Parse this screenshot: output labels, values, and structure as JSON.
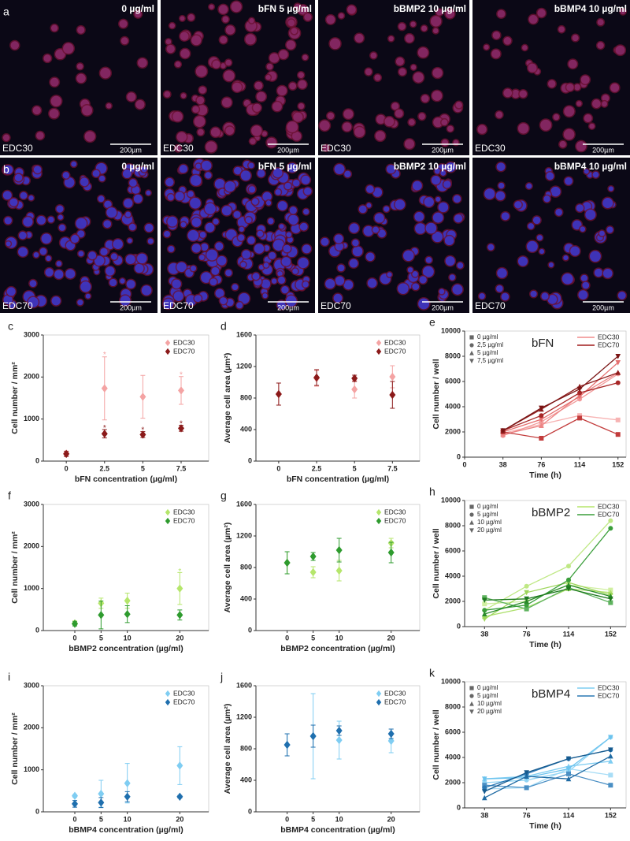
{
  "images": {
    "rows": [
      {
        "label": "a",
        "cells": [
          {
            "title": "0 µg/ml",
            "tag": "EDC30",
            "scale": "200µm"
          },
          {
            "title": "bFN 5 µg/ml",
            "tag": "EDC30",
            "scale": "200µm"
          },
          {
            "title": "bBMP2 10 µg/ml",
            "tag": "EDC30",
            "scale": "200µm"
          },
          {
            "title": "bBMP4 10 µg/ml",
            "tag": "EDC30",
            "scale": "200µm"
          }
        ]
      },
      {
        "label": "b",
        "cells": [
          {
            "title": "0 µg/ml",
            "tag": "EDC70",
            "scale": "200µm"
          },
          {
            "title": "bFN 5 µg/ml",
            "tag": "EDC70",
            "scale": "200µm"
          },
          {
            "title": "bBMP2 10 µg/ml",
            "tag": "EDC70",
            "scale": "200µm"
          },
          {
            "title": "bBMP4 10 µg/ml",
            "tag": "EDC70",
            "scale": "200µm"
          }
        ]
      }
    ]
  },
  "chart_data": [
    {
      "type": "scatter",
      "panel": "c",
      "xlabel": "bFN concentration (µg/ml)",
      "ylabel": "Cell number / mm²",
      "x": [
        0,
        2.5,
        5,
        7.5
      ],
      "xlim": [
        -1.5,
        9.3
      ],
      "xticks": [
        0,
        2.5,
        5,
        7.5
      ],
      "ylim": [
        0,
        3000
      ],
      "yticks": [
        0,
        1000,
        2000,
        3000
      ],
      "series": [
        {
          "name": "EDC30",
          "color": "#f4a3a3",
          "values": [
            180,
            1730,
            1530,
            1680
          ],
          "errors": [
            60,
            750,
            510,
            330
          ]
        },
        {
          "name": "EDC70",
          "color": "#8b1a1a",
          "values": [
            170,
            650,
            630,
            780
          ],
          "errors": [
            60,
            100,
            70,
            70
          ]
        }
      ],
      "annotations": [
        {
          "text": "*",
          "x": 2.5,
          "y": 2560,
          "series": 0
        },
        {
          "text": "*",
          "x": 7.5,
          "y": 2080,
          "series": 0
        },
        {
          "text": "*",
          "x": 2.5,
          "y": 820,
          "series": 1
        },
        {
          "text": "*",
          "x": 5,
          "y": 770,
          "series": 1
        },
        {
          "text": "*",
          "x": 7.5,
          "y": 920,
          "series": 1
        }
      ]
    },
    {
      "type": "scatter",
      "panel": "d",
      "xlabel": "bFN concentration (µg/ml)",
      "ylabel": "Average cell area (µm²)",
      "x": [
        0,
        2.5,
        5,
        7.5
      ],
      "xlim": [
        -1.5,
        9.3
      ],
      "xticks": [
        0,
        2.5,
        5,
        7.5
      ],
      "ylim": [
        0,
        1600
      ],
      "yticks": [
        0,
        400,
        800,
        1200,
        1600
      ],
      "series": [
        {
          "name": "EDC30",
          "color": "#f4a3a3",
          "values": [
            850,
            1050,
            910,
            1070
          ],
          "errors": [
            140,
            100,
            110,
            140
          ]
        },
        {
          "name": "EDC70",
          "color": "#8b1a1a",
          "values": [
            850,
            1060,
            1050,
            840
          ],
          "errors": [
            140,
            100,
            40,
            170
          ]
        }
      ]
    },
    {
      "type": "line",
      "panel": "e",
      "title": "bFN",
      "xlabel": "Time (h)",
      "ylabel": "Cell number / well",
      "x": [
        38,
        76,
        114,
        152
      ],
      "xlim": [
        0,
        160
      ],
      "xticks": [
        0,
        38,
        76,
        114,
        152
      ],
      "ylim": [
        0,
        10000
      ],
      "yticks": [
        0,
        2000,
        4000,
        6000,
        8000,
        10000
      ],
      "marker_legend": [
        "0 µg/ml",
        "2,5 µg/ml",
        "5 µg/ml",
        "7,5 µg/ml"
      ],
      "color_legend": [
        {
          "name": "EDC30",
          "color": "#f08c8c"
        },
        {
          "name": "EDC70",
          "color": "#a01c1c"
        }
      ],
      "series": [
        {
          "group": 0,
          "marker": 0,
          "color": "#f7b3b3",
          "values": [
            1900,
            2600,
            3300,
            2950
          ]
        },
        {
          "group": 0,
          "marker": 1,
          "color": "#f29a9a",
          "values": [
            1700,
            2800,
            4600,
            6600
          ]
        },
        {
          "group": 0,
          "marker": 2,
          "color": "#ec8585",
          "values": [
            1800,
            2500,
            4900,
            6700
          ]
        },
        {
          "group": 0,
          "marker": 3,
          "color": "#e67070",
          "values": [
            2000,
            3000,
            4800,
            7500
          ]
        },
        {
          "group": 1,
          "marker": 0,
          "color": "#c23b3b",
          "values": [
            2000,
            1500,
            3100,
            1800
          ]
        },
        {
          "group": 1,
          "marker": 1,
          "color": "#a82828",
          "values": [
            2100,
            3300,
            5100,
            5900
          ]
        },
        {
          "group": 1,
          "marker": 2,
          "color": "#8e1c1c",
          "values": [
            2100,
            3800,
            5600,
            6700
          ]
        },
        {
          "group": 1,
          "marker": 3,
          "color": "#7a1414",
          "values": [
            2100,
            3900,
            5400,
            8000
          ]
        }
      ]
    },
    {
      "type": "scatter",
      "panel": "f",
      "xlabel": "bBMP2 concentration (µg/ml)",
      "ylabel": "Cell number / mm²",
      "x": [
        0,
        5,
        10,
        20
      ],
      "xlim": [
        -6,
        25.5
      ],
      "xticks": [
        0,
        5,
        10,
        20
      ],
      "ylim": [
        0,
        3000
      ],
      "yticks": [
        0,
        1000,
        2000,
        3000
      ],
      "series": [
        {
          "name": "EDC30",
          "color": "#b5e66b",
          "values": [
            170,
            650,
            710,
            1000
          ],
          "errors": [
            60,
            120,
            180,
            380
          ]
        },
        {
          "name": "EDC70",
          "color": "#2e9b2e",
          "values": [
            160,
            370,
            390,
            370
          ],
          "errors": [
            50,
            330,
            200,
            120
          ]
        }
      ],
      "annotations": [
        {
          "text": "*",
          "x": 20,
          "y": 1440,
          "series": 0
        }
      ]
    },
    {
      "type": "scatter",
      "panel": "g",
      "xlabel": "bBMP2 concentration (µg/ml)",
      "ylabel": "Average cell area (µm²)",
      "x": [
        0,
        5,
        10,
        20
      ],
      "xlim": [
        -6,
        25.5
      ],
      "xticks": [
        0,
        5,
        10,
        20
      ],
      "ylim": [
        0,
        1600
      ],
      "yticks": [
        0,
        400,
        800,
        1200,
        1600
      ],
      "series": [
        {
          "name": "EDC30",
          "color": "#b5e66b",
          "values": [
            860,
            740,
            760,
            1110
          ],
          "errors": [
            140,
            70,
            130,
            60
          ]
        },
        {
          "name": "EDC70",
          "color": "#2e9b2e",
          "values": [
            860,
            940,
            1020,
            990
          ],
          "errors": [
            140,
            50,
            150,
            130
          ]
        }
      ]
    },
    {
      "type": "line",
      "panel": "h",
      "title": "bBMP2",
      "xlabel": "Time (h)",
      "ylabel": "Cell number / well",
      "x": [
        38,
        76,
        114,
        152
      ],
      "xlim": [
        20,
        166
      ],
      "xticks": [
        38,
        76,
        114,
        152
      ],
      "ylim": [
        0,
        10000
      ],
      "yticks": [
        0,
        2000,
        4000,
        6000,
        8000,
        10000
      ],
      "marker_legend": [
        "0 µg/ml",
        "5 µg/ml",
        "10 µg/ml",
        "20 µg/ml"
      ],
      "color_legend": [
        {
          "name": "EDC30",
          "color": "#b5e66b"
        },
        {
          "name": "EDC70",
          "color": "#3a9e3a"
        }
      ],
      "series": [
        {
          "group": 0,
          "marker": 0,
          "color": "#d0efa0",
          "values": [
            1800,
            2000,
            3300,
            2900
          ]
        },
        {
          "group": 0,
          "marker": 1,
          "color": "#bfe884",
          "values": [
            1300,
            3200,
            4800,
            8400
          ]
        },
        {
          "group": 0,
          "marker": 2,
          "color": "#aee06e",
          "values": [
            800,
            1500,
            3000,
            2700
          ]
        },
        {
          "group": 0,
          "marker": 3,
          "color": "#9dd65a",
          "values": [
            600,
            2700,
            3500,
            2500
          ]
        },
        {
          "group": 1,
          "marker": 0,
          "color": "#5fb35f",
          "values": [
            2300,
            1400,
            3100,
            1900
          ]
        },
        {
          "group": 1,
          "marker": 1,
          "color": "#3a9e3a",
          "values": [
            1300,
            1700,
            3700,
            7800
          ]
        },
        {
          "group": 1,
          "marker": 2,
          "color": "#2a8a2a",
          "values": [
            1000,
            2000,
            3300,
            2400
          ]
        },
        {
          "group": 1,
          "marker": 3,
          "color": "#1f7a1f",
          "values": [
            2100,
            2200,
            3000,
            2200
          ]
        }
      ]
    },
    {
      "type": "scatter",
      "panel": "i",
      "xlabel": "bBMP4 concentration (µg/ml)",
      "ylabel": "Cell number / mm²",
      "x": [
        0,
        5,
        10,
        20
      ],
      "xlim": [
        -6,
        25.5
      ],
      "xticks": [
        0,
        5,
        10,
        20
      ],
      "ylim": [
        0,
        3000
      ],
      "yticks": [
        0,
        1000,
        2000,
        3000
      ],
      "series": [
        {
          "name": "EDC30",
          "color": "#7fcdf2",
          "values": [
            380,
            430,
            680,
            1100
          ],
          "errors": [
            30,
            320,
            470,
            450
          ]
        },
        {
          "name": "EDC70",
          "color": "#1f6fae",
          "values": [
            190,
            220,
            360,
            360
          ],
          "errors": [
            80,
            120,
            120,
            30
          ]
        }
      ]
    },
    {
      "type": "scatter",
      "panel": "j",
      "xlabel": "bBMP4 concentration (µg/ml)",
      "ylabel": "Average cell area (µm²)",
      "x": [
        0,
        5,
        10,
        20
      ],
      "xlim": [
        -6,
        25.5
      ],
      "xticks": [
        0,
        5,
        10,
        20
      ],
      "ylim": [
        0,
        1600
      ],
      "yticks": [
        0,
        400,
        800,
        1200,
        1600
      ],
      "series": [
        {
          "name": "EDC30",
          "color": "#7fcdf2",
          "values": [
            850,
            960,
            910,
            900
          ],
          "errors": [
            140,
            540,
            240,
            150
          ]
        },
        {
          "name": "EDC70",
          "color": "#1f6fae",
          "values": [
            850,
            960,
            1030,
            990
          ],
          "errors": [
            140,
            140,
            60,
            60
          ]
        }
      ]
    },
    {
      "type": "line",
      "panel": "k",
      "title": "bBMP4",
      "xlabel": "Time (h)",
      "ylabel": "Cell number / well",
      "x": [
        38,
        76,
        114,
        152
      ],
      "xlim": [
        20,
        166
      ],
      "xticks": [
        38,
        76,
        114,
        152
      ],
      "ylim": [
        0,
        10000
      ],
      "yticks": [
        0,
        2000,
        4000,
        6000,
        8000,
        10000
      ],
      "marker_legend": [
        "0 µg/ml",
        "5 µg/ml",
        "10 µg/ml",
        "20 µg/ml"
      ],
      "color_legend": [
        {
          "name": "EDC30",
          "color": "#7fcdf2"
        },
        {
          "name": "EDC70",
          "color": "#2a78b4"
        }
      ],
      "series": [
        {
          "group": 0,
          "marker": 0,
          "color": "#a8ddf6",
          "values": [
            1500,
            1600,
            3100,
            2600
          ]
        },
        {
          "group": 0,
          "marker": 1,
          "color": "#93d5f4",
          "values": [
            2000,
            2200,
            2900,
            5600
          ]
        },
        {
          "group": 0,
          "marker": 2,
          "color": "#7fcdf2",
          "values": [
            2300,
            2500,
            3300,
            3700
          ]
        },
        {
          "group": 0,
          "marker": 3,
          "color": "#6cc3ee",
          "values": [
            2300,
            2400,
            3100,
            5600
          ]
        },
        {
          "group": 1,
          "marker": 0,
          "color": "#4a8fc4",
          "values": [
            1800,
            1600,
            2700,
            1800
          ]
        },
        {
          "group": 1,
          "marker": 1,
          "color": "#2a78b4",
          "values": [
            1600,
            2700,
            3900,
            4600
          ]
        },
        {
          "group": 1,
          "marker": 2,
          "color": "#1f6aa3",
          "values": [
            800,
            2500,
            2300,
            4100
          ]
        },
        {
          "group": 1,
          "marker": 3,
          "color": "#165a8e",
          "values": [
            1300,
            2800,
            3900,
            4600
          ]
        }
      ]
    }
  ]
}
